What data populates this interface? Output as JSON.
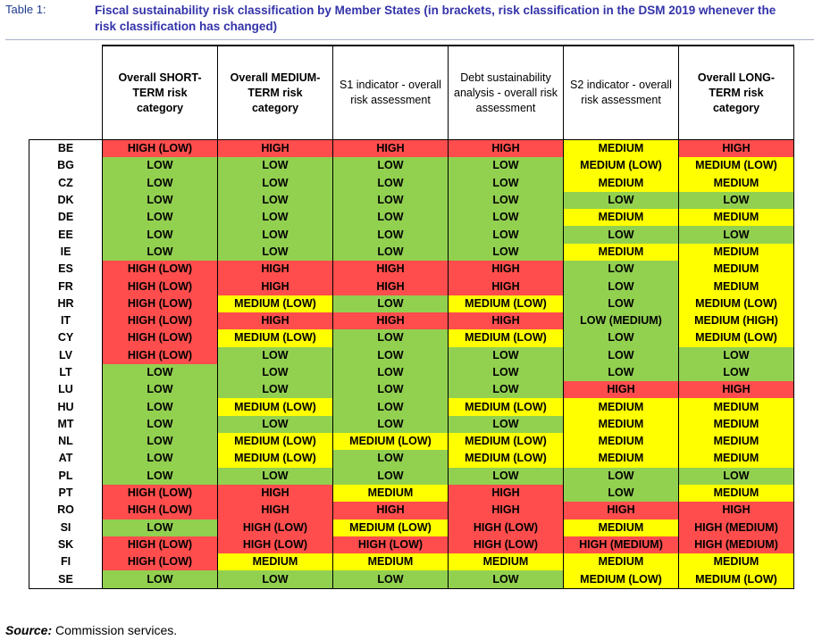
{
  "caption": {
    "label": "Table 1:",
    "title": "Fiscal sustainability risk classification by Member States (in brackets, risk classification in the DSM 2019 whenever the risk classification has changed)"
  },
  "table": {
    "columns": [
      {
        "label": "Overall SHORT-TERM risk category",
        "bold": true
      },
      {
        "label": "Overall MEDIUM-TERM risk category",
        "bold": true
      },
      {
        "label": "S1 indicator - overall risk assessment",
        "bold": false
      },
      {
        "label": "Debt sustainability analysis - overall risk assessment",
        "bold": false
      },
      {
        "label": "S2 indicator - overall risk assessment",
        "bold": false
      },
      {
        "label": "Overall LONG-TERM risk category",
        "bold": true
      }
    ],
    "colors": {
      "HIGH": "#ff4d4d",
      "MEDIUM": "#ffff00",
      "LOW": "#92d050"
    },
    "rows": [
      {
        "country": "BE",
        "cells": [
          "HIGH (LOW)",
          "HIGH",
          "HIGH",
          "HIGH",
          "MEDIUM",
          "HIGH"
        ]
      },
      {
        "country": "BG",
        "cells": [
          "LOW",
          "LOW",
          "LOW",
          "LOW",
          "MEDIUM (LOW)",
          "MEDIUM (LOW)"
        ]
      },
      {
        "country": "CZ",
        "cells": [
          "LOW",
          "LOW",
          "LOW",
          "LOW",
          "MEDIUM",
          "MEDIUM"
        ]
      },
      {
        "country": "DK",
        "cells": [
          "LOW",
          "LOW",
          "LOW",
          "LOW",
          "LOW",
          "LOW"
        ]
      },
      {
        "country": "DE",
        "cells": [
          "LOW",
          "LOW",
          "LOW",
          "LOW",
          "MEDIUM",
          "MEDIUM"
        ]
      },
      {
        "country": "EE",
        "cells": [
          "LOW",
          "LOW",
          "LOW",
          "LOW",
          "LOW",
          "LOW"
        ]
      },
      {
        "country": "IE",
        "cells": [
          "LOW",
          "LOW",
          "LOW",
          "LOW",
          "MEDIUM",
          "MEDIUM"
        ]
      },
      {
        "country": "ES",
        "cells": [
          "HIGH (LOW)",
          "HIGH",
          "HIGH",
          "HIGH",
          "LOW",
          "MEDIUM"
        ]
      },
      {
        "country": "FR",
        "cells": [
          "HIGH (LOW)",
          "HIGH",
          "HIGH",
          "HIGH",
          "LOW",
          "MEDIUM"
        ]
      },
      {
        "country": "HR",
        "cells": [
          "HIGH (LOW)",
          "MEDIUM (LOW)",
          "LOW",
          "MEDIUM (LOW)",
          "LOW",
          "MEDIUM (LOW)"
        ]
      },
      {
        "country": "IT",
        "cells": [
          "HIGH (LOW)",
          "HIGH",
          "HIGH",
          "HIGH",
          "LOW (MEDIUM)",
          "MEDIUM (HIGH)"
        ]
      },
      {
        "country": "CY",
        "cells": [
          "HIGH (LOW)",
          "MEDIUM (LOW)",
          "LOW",
          "MEDIUM (LOW)",
          "LOW",
          "MEDIUM (LOW)"
        ]
      },
      {
        "country": "LV",
        "cells": [
          "HIGH (LOW)",
          "LOW",
          "LOW",
          "LOW",
          "LOW",
          "LOW"
        ]
      },
      {
        "country": "LT",
        "cells": [
          "LOW",
          "LOW",
          "LOW",
          "LOW",
          "LOW",
          "LOW"
        ]
      },
      {
        "country": "LU",
        "cells": [
          "LOW",
          "LOW",
          "LOW",
          "LOW",
          "HIGH",
          "HIGH"
        ]
      },
      {
        "country": "HU",
        "cells": [
          "LOW",
          "MEDIUM (LOW)",
          "LOW",
          "MEDIUM (LOW)",
          "MEDIUM",
          "MEDIUM"
        ]
      },
      {
        "country": "MT",
        "cells": [
          "LOW",
          "LOW",
          "LOW",
          "LOW",
          "MEDIUM",
          "MEDIUM"
        ]
      },
      {
        "country": "NL",
        "cells": [
          "LOW",
          "MEDIUM (LOW)",
          "MEDIUM (LOW)",
          "MEDIUM (LOW)",
          "MEDIUM",
          "MEDIUM"
        ]
      },
      {
        "country": "AT",
        "cells": [
          "LOW",
          "MEDIUM (LOW)",
          "LOW",
          "MEDIUM (LOW)",
          "MEDIUM",
          "MEDIUM"
        ]
      },
      {
        "country": "PL",
        "cells": [
          "LOW",
          "LOW",
          "LOW",
          "LOW",
          "LOW",
          "LOW"
        ]
      },
      {
        "country": "PT",
        "cells": [
          "HIGH (LOW)",
          "HIGH",
          "MEDIUM",
          "HIGH",
          "LOW",
          "MEDIUM"
        ]
      },
      {
        "country": "RO",
        "cells": [
          "HIGH (LOW)",
          "HIGH",
          "HIGH",
          "HIGH",
          "HIGH",
          "HIGH"
        ]
      },
      {
        "country": "SI",
        "cells": [
          "LOW",
          "HIGH (LOW)",
          "MEDIUM (LOW)",
          "HIGH (LOW)",
          "MEDIUM",
          "HIGH (MEDIUM)"
        ]
      },
      {
        "country": "SK",
        "cells": [
          "HIGH (LOW)",
          "HIGH (LOW)",
          "HIGH (LOW)",
          "HIGH (LOW)",
          "HIGH (MEDIUM)",
          "HIGH (MEDIUM)"
        ]
      },
      {
        "country": "FI",
        "cells": [
          "HIGH (LOW)",
          "MEDIUM",
          "MEDIUM",
          "MEDIUM",
          "MEDIUM",
          "MEDIUM"
        ]
      },
      {
        "country": "SE",
        "cells": [
          "LOW",
          "LOW",
          "LOW",
          "LOW",
          "MEDIUM (LOW)",
          "MEDIUM (LOW)"
        ]
      }
    ]
  },
  "source": {
    "label": "Source:",
    "text": "Commission services."
  }
}
